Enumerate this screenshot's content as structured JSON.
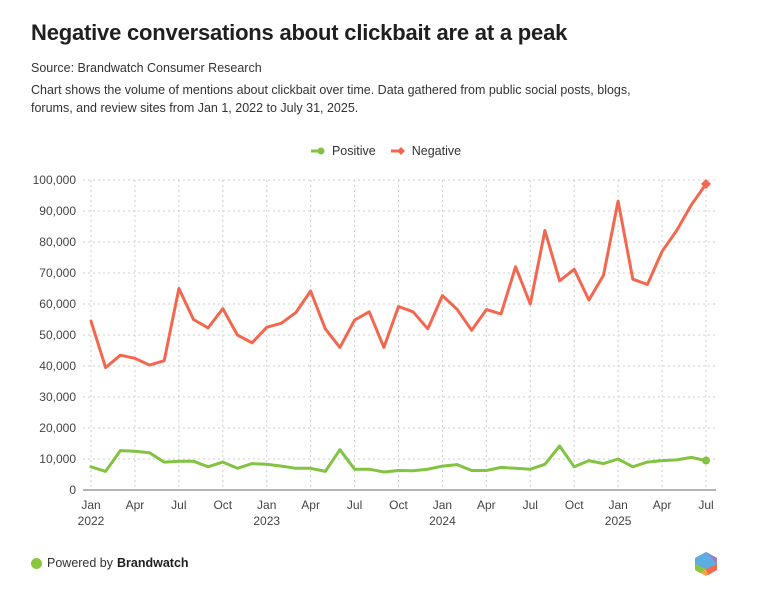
{
  "header": {
    "title": "Negative conversations about clickbait are at a peak",
    "source": "Source: Brandwatch Consumer Research",
    "description": "Chart shows the volume of mentions about clickbait over time. Data gathered from public social posts, blogs, forums, and review sites from Jan 1, 2022 to July 31, 2025."
  },
  "legend": {
    "items": [
      {
        "label": "Positive",
        "color": "#82c341"
      },
      {
        "label": "Negative",
        "color": "#f4674f"
      }
    ]
  },
  "footer": {
    "powered_by": "Powered by",
    "brand": "Brandwatch",
    "dot_color": "#8cc63f",
    "logo_icon": "brandwatch-hexagon-logo-icon"
  },
  "chart_data": {
    "type": "line",
    "title": "Negative conversations about clickbait are at a peak",
    "xlabel": "",
    "ylabel": "",
    "ylim": [
      0,
      100000
    ],
    "yticks": [
      0,
      10000,
      20000,
      30000,
      40000,
      50000,
      60000,
      70000,
      80000,
      90000,
      100000
    ],
    "ytick_labels": [
      "0",
      "10,000",
      "20,000",
      "30,000",
      "40,000",
      "50,000",
      "60,000",
      "70,000",
      "80,000",
      "90,000",
      "100,000"
    ],
    "grid": true,
    "legend_position": "top-center",
    "x": [
      "2022-01",
      "2022-02",
      "2022-03",
      "2022-04",
      "2022-05",
      "2022-06",
      "2022-07",
      "2022-08",
      "2022-09",
      "2022-10",
      "2022-11",
      "2022-12",
      "2023-01",
      "2023-02",
      "2023-03",
      "2023-04",
      "2023-05",
      "2023-06",
      "2023-07",
      "2023-08",
      "2023-09",
      "2023-10",
      "2023-11",
      "2023-12",
      "2024-01",
      "2024-02",
      "2024-03",
      "2024-04",
      "2024-05",
      "2024-06",
      "2024-07",
      "2024-08",
      "2024-09",
      "2024-10",
      "2024-11",
      "2024-12",
      "2025-01",
      "2025-02",
      "2025-03",
      "2025-04",
      "2025-05",
      "2025-06",
      "2025-07"
    ],
    "xticks": [
      {
        "index": 0,
        "label": "Jan",
        "year": "2022"
      },
      {
        "index": 3,
        "label": "Apr",
        "year": ""
      },
      {
        "index": 6,
        "label": "Jul",
        "year": ""
      },
      {
        "index": 9,
        "label": "Oct",
        "year": ""
      },
      {
        "index": 12,
        "label": "Jan",
        "year": "2023"
      },
      {
        "index": 15,
        "label": "Apr",
        "year": ""
      },
      {
        "index": 18,
        "label": "Jul",
        "year": ""
      },
      {
        "index": 21,
        "label": "Oct",
        "year": ""
      },
      {
        "index": 24,
        "label": "Jan",
        "year": "2024"
      },
      {
        "index": 27,
        "label": "Apr",
        "year": ""
      },
      {
        "index": 30,
        "label": "Jul",
        "year": ""
      },
      {
        "index": 33,
        "label": "Oct",
        "year": ""
      },
      {
        "index": 36,
        "label": "Jan",
        "year": "2025"
      },
      {
        "index": 39,
        "label": "Apr",
        "year": ""
      },
      {
        "index": 42,
        "label": "Jul",
        "year": ""
      }
    ],
    "series": [
      {
        "name": "Positive",
        "color": "#82c341",
        "values": [
          7500,
          6000,
          12700,
          12500,
          12000,
          9000,
          9300,
          9300,
          7500,
          9000,
          7000,
          8500,
          8300,
          7700,
          7000,
          7000,
          6000,
          13000,
          6700,
          6700,
          5800,
          6300,
          6200,
          6700,
          7700,
          8200,
          6300,
          6300,
          7300,
          7000,
          6700,
          8300,
          14200,
          7500,
          9500,
          8500,
          10000,
          7500,
          9000,
          9500,
          9700,
          10500,
          9500
        ]
      },
      {
        "name": "Negative",
        "color": "#f4674f",
        "values": [
          54500,
          39500,
          43500,
          42500,
          40300,
          41700,
          65000,
          55000,
          52300,
          58500,
          50000,
          47500,
          52500,
          53800,
          57300,
          64200,
          52000,
          46000,
          54800,
          57500,
          46000,
          59200,
          57500,
          52000,
          62700,
          58300,
          51500,
          58200,
          56800,
          72000,
          60000,
          83700,
          67500,
          71200,
          61300,
          69300,
          93200,
          68000,
          66300,
          77000,
          83700,
          92000,
          98700
        ]
      }
    ]
  }
}
